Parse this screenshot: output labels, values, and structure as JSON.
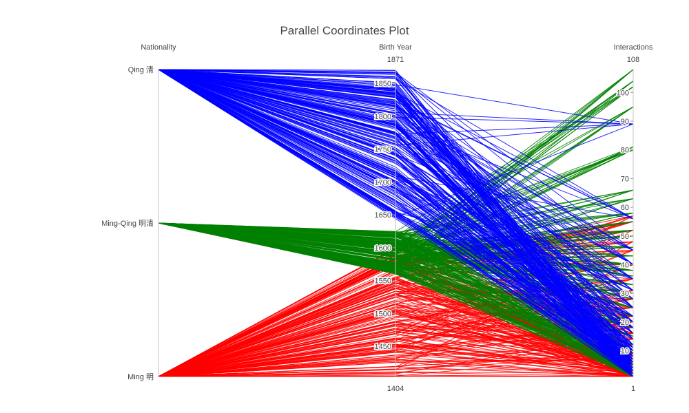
{
  "chart_data": {
    "type": "parallel-coordinates",
    "title": "Parallel Coordinates Plot",
    "dimensions": [
      {
        "label": "Nationality",
        "kind": "categorical",
        "categories": [
          "Qing 清",
          "Ming-Qing 明清",
          "Ming 明"
        ],
        "tick_labels": [
          "Qing 清",
          "Ming-Qing 明清",
          "Ming 明"
        ]
      },
      {
        "label": "Birth Year",
        "kind": "numeric",
        "range": [
          1404,
          1871
        ],
        "range_labels": [
          "1871",
          "1404"
        ],
        "ticks": [
          1450,
          1500,
          1550,
          1600,
          1650,
          1700,
          1750,
          1800,
          1850
        ],
        "tick_labels": [
          "1450",
          "1500",
          "1550",
          "1600",
          "1650",
          "1700",
          "1750",
          "1800",
          "1850"
        ]
      },
      {
        "label": "Interactions",
        "kind": "numeric",
        "range": [
          1,
          108
        ],
        "range_labels": [
          "108",
          "1"
        ],
        "ticks": [
          10,
          20,
          30,
          40,
          50,
          60,
          70,
          80,
          90,
          100
        ],
        "tick_labels": [
          "10",
          "20",
          "30",
          "40",
          "50",
          "60",
          "70",
          "80",
          "90",
          "100"
        ]
      }
    ],
    "color_by": "Nationality",
    "colors": {
      "Qing 清": "#0000ff",
      "Ming-Qing 明清": "#008000",
      "Ming 明": "#ff0000"
    },
    "series": [
      {
        "name": "Qing 清",
        "birth_year_ranges": [
          [
            1644,
            1871
          ]
        ],
        "interactions": [
          1,
          1,
          1,
          1,
          1,
          2,
          2,
          2,
          2,
          3,
          3,
          3,
          4,
          4,
          5,
          5,
          6,
          6,
          7,
          8,
          9,
          10,
          11,
          12,
          14,
          16,
          18,
          20,
          22,
          25,
          28,
          31,
          35,
          40,
          45,
          56,
          89
        ]
      },
      {
        "name": "Ming-Qing 明清",
        "birth_year_ranges": [
          [
            1560,
            1625
          ]
        ],
        "interactions": [
          1,
          1,
          2,
          2,
          3,
          3,
          4,
          5,
          6,
          8,
          10,
          12,
          15,
          18,
          20,
          22,
          25,
          28,
          30,
          33,
          36,
          38,
          40,
          43,
          46,
          50,
          52,
          55,
          58,
          63,
          66,
          80,
          81,
          95,
          102,
          104,
          108
        ]
      },
      {
        "name": "Ming 明",
        "birth_year_ranges": [
          [
            1404,
            1600
          ]
        ],
        "interactions": [
          1,
          1,
          1,
          1,
          1,
          2,
          2,
          2,
          3,
          3,
          4,
          4,
          5,
          6,
          7,
          8,
          9,
          10,
          12,
          14,
          16,
          18,
          20,
          22,
          25,
          28,
          31,
          35,
          40,
          45,
          48,
          52,
          55,
          57
        ]
      }
    ]
  }
}
